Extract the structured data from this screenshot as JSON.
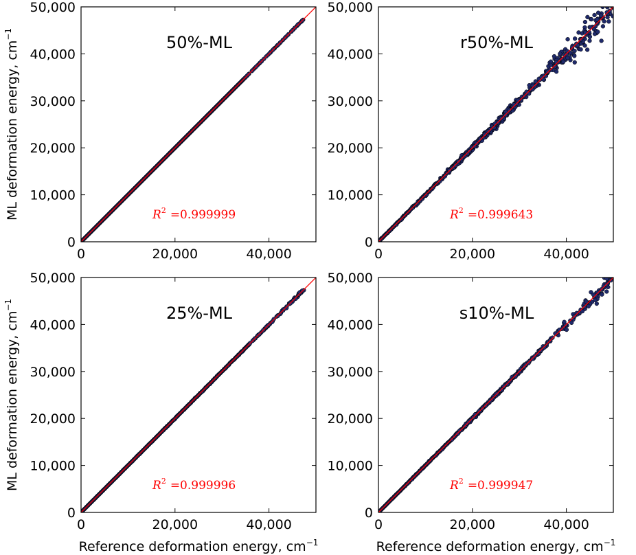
{
  "chart_data": {
    "type": "scatter",
    "xlabel": "Reference deformation energy, cm",
    "xlabel_unit_exp": "−1",
    "ylabel": "ML deformation energy, cm",
    "ylabel_unit_exp": "−1",
    "xlim": [
      0,
      50000
    ],
    "ylim": [
      0,
      50000
    ],
    "xticks": [
      0,
      20000,
      40000
    ],
    "xtick_labels": [
      "0",
      "20,000",
      "40,000"
    ],
    "yticks": [
      0,
      10000,
      20000,
      30000,
      40000,
      50000
    ],
    "ytick_labels": [
      "0",
      "10,000",
      "20,000",
      "30,000",
      "40,000",
      "50,000"
    ],
    "reference_line": {
      "slope": 1,
      "intercept": 0,
      "color": "#ff0000"
    },
    "marker_color": "#1f2a6b",
    "panels": [
      {
        "title": "50%-ML",
        "r2_symbol": "R",
        "r2_exp": "2",
        "r2_value": "=0.999999",
        "noise_scale": 0.02,
        "dense_until": 35000,
        "max_x": 47500
      },
      {
        "title": "r50%-ML",
        "r2_symbol": "R",
        "r2_exp": "2",
        "r2_value": "=0.999643",
        "noise_scale": 1.0,
        "dense_until": 30000,
        "max_x": 50000
      },
      {
        "title": "25%-ML",
        "r2_symbol": "R",
        "r2_exp": "2",
        "r2_value": "=0.999996",
        "noise_scale": 0.12,
        "dense_until": 36000,
        "max_x": 47500
      },
      {
        "title": "s10%-ML",
        "r2_symbol": "R",
        "r2_exp": "2",
        "r2_value": "=0.999947",
        "noise_scale": 0.45,
        "dense_until": 32000,
        "max_x": 49500
      }
    ]
  }
}
